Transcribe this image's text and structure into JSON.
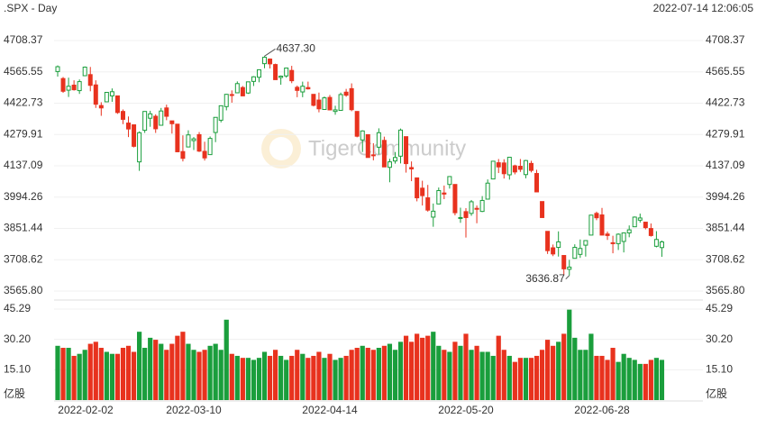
{
  "chart_data": {
    "type": "candlestick",
    "title": ".SPX - Day",
    "timestamp": "2022-07-14 12:06:05",
    "watermark": "TigerCommunity",
    "categories": [
      "2022-02-02",
      null,
      null,
      null,
      null,
      null,
      null,
      null,
      null,
      null,
      null,
      null,
      null,
      null,
      null,
      null,
      null,
      null,
      null,
      null,
      null,
      null,
      null,
      null,
      null,
      "2022-03-10",
      null,
      null,
      null,
      null,
      null,
      null,
      null,
      null,
      null,
      null,
      null,
      null,
      null,
      null,
      null,
      null,
      null,
      null,
      null,
      null,
      null,
      null,
      null,
      null,
      "2022-04-14",
      null,
      null,
      null,
      null,
      null,
      null,
      null,
      null,
      null,
      null,
      null,
      null,
      null,
      null,
      null,
      null,
      null,
      null,
      null,
      null,
      null,
      null,
      null,
      null,
      "2022-05-20",
      null,
      null,
      null,
      null,
      null,
      null,
      null,
      null,
      null,
      null,
      null,
      null,
      null,
      null,
      null,
      null,
      null,
      null,
      null,
      null,
      null,
      null,
      null,
      null,
      "2022-06-28",
      null,
      null,
      null,
      null,
      null,
      null,
      null,
      null,
      null,
      null,
      null
    ],
    "open": [
      4567,
      4535,
      4482,
      4505,
      4480,
      4548,
      4553,
      4506,
      4412,
      4429,
      4456,
      4456,
      4385,
      4332,
      4324,
      4155,
      4299,
      4354,
      4363,
      4322,
      4401,
      4342,
      4327,
      4202,
      4223,
      4252,
      4279,
      4203,
      4188,
      4289,
      4345,
      4407,
      4462,
      4470,
      4494,
      4469,
      4522,
      4541,
      4603,
      4624,
      4599,
      4540,
      4547,
      4572,
      4495,
      4474,
      4494,
      4463,
      4437,
      4394,
      4449,
      4385,
      4390,
      4473,
      4489,
      4385,
      4255,
      4279,
      4187,
      4222,
      4253,
      4130,
      4159,
      4181,
      4270,
      4129,
      4082,
      4035,
      3991,
      3903,
      3963,
      4013,
      4052,
      4052,
      3899,
      3928,
      3920,
      3943,
      3929,
      3985,
      4077,
      4151,
      4150,
      4096,
      4137,
      4135,
      4097,
      4148,
      4102,
      3974,
      3838,
      3763,
      3765,
      3728,
      3665,
      3715,
      3733,
      3775,
      3821,
      3920,
      3913,
      3826,
      3786,
      3782,
      3792,
      3831,
      3859,
      3889,
      3880,
      3851,
      3770,
      3764
    ],
    "high": [
      4595,
      4542,
      4539,
      4527,
      4531,
      4590,
      4588,
      4527,
      4427,
      4473,
      4490,
      4456,
      4394,
      4362,
      4325,
      4294,
      4385,
      4388,
      4372,
      4401,
      4416,
      4342,
      4327,
      4276,
      4299,
      4268,
      4291,
      4247,
      4271,
      4358,
      4412,
      4465,
      4481,
      4522,
      4501,
      4520,
      4546,
      4575,
      4637.3,
      4627,
      4603,
      4549,
      4583,
      4593,
      4503,
      4521,
      4521,
      4464,
      4471,
      4453,
      4460,
      4411,
      4471,
      4488,
      4513,
      4385,
      4299,
      4279,
      4240,
      4308,
      4270,
      4169,
      4200,
      4307,
      4270,
      4157,
      4082,
      4069,
      4050,
      3965,
      4038,
      4047,
      4090,
      4052,
      3946,
      3944,
      3981,
      3956,
      3999,
      4075,
      4158,
      4168,
      4167,
      4177,
      4142,
      4168,
      4164,
      4160,
      4119,
      3974,
      3838,
      3778,
      3838,
      3728,
      3708,
      3779,
      3801,
      3797,
      3913,
      3928,
      3945,
      3837,
      3818,
      3829,
      3832,
      3865,
      3906,
      3919,
      3880,
      3874,
      3839,
      3796
    ],
    "low": [
      4544,
      4470,
      4451,
      4480,
      4465,
      4547,
      4477,
      4401,
      4365,
      4429,
      4429,
      4374,
      4327,
      4268,
      4221,
      4114,
      4287,
      4315,
      4287,
      4322,
      4345,
      4284,
      4199,
      4157,
      4223,
      4209,
      4200,
      4161,
      4187,
      4245,
      4335,
      4390,
      4425,
      4468,
      4455,
      4465,
      4501,
      4518,
      4582,
      4581,
      4530,
      4507,
      4539,
      4514,
      4450,
      4450,
      4485,
      4408,
      4381,
      4392,
      4390,
      4370,
      4390,
      4452,
      4386,
      4267,
      4200,
      4175,
      4162,
      4188,
      4131,
      4062,
      4147,
      4148,
      4106,
      4067,
      3975,
      3956,
      3928,
      3859,
      3963,
      3985,
      4033,
      3911,
      3877,
      3810,
      3909,
      3875,
      3926,
      3984,
      4077,
      4104,
      4079,
      4074,
      4098,
      4109,
      4080,
      4107,
      4017,
      3900,
      3735,
      3725,
      3723,
      3640,
      3636.87,
      3715,
      3717,
      3723,
      3821,
      3889,
      3820,
      3799,
      3738,
      3753,
      3742,
      3811,
      3859,
      3878,
      3847,
      3814,
      3765,
      3722
    ],
    "close": [
      4589,
      4477,
      4500,
      4484,
      4521,
      4587,
      4504,
      4418,
      4401,
      4472,
      4475,
      4380,
      4349,
      4305,
      4226,
      4288,
      4385,
      4374,
      4306,
      4387,
      4363,
      4329,
      4201,
      4171,
      4278,
      4260,
      4204,
      4173,
      4262,
      4358,
      4411,
      4463,
      4461,
      4512,
      4456,
      4520,
      4543,
      4575,
      4632,
      4602,
      4530,
      4546,
      4583,
      4525,
      4481,
      4500,
      4488,
      4413,
      4397,
      4447,
      4392,
      4392,
      4462,
      4459,
      4393,
      4272,
      4296,
      4175,
      4183,
      4288,
      4132,
      4155,
      4175,
      4300,
      4147,
      4123,
      3991,
      4001,
      3935,
      3930,
      4024,
      4008,
      4088,
      3923,
      3901,
      3901,
      3973,
      3941,
      3979,
      4058,
      4158,
      4132,
      4101,
      4176,
      4109,
      4121,
      4161,
      4116,
      4018,
      3901,
      3750,
      3735,
      3790,
      3667,
      3675,
      3765,
      3760,
      3796,
      3912,
      3900,
      3821,
      3819,
      3785,
      3825,
      3831,
      3845,
      3903,
      3899,
      3855,
      3819,
      3801,
      3790
    ],
    "volume": [
      27,
      26,
      26,
      22,
      23,
      25,
      28,
      29,
      26,
      24,
      23,
      23,
      26,
      27,
      24,
      34,
      26,
      31,
      30,
      28,
      25,
      28,
      32,
      34,
      28,
      25,
      24,
      25,
      27,
      28,
      25,
      40,
      23,
      22,
      21,
      21,
      20,
      21,
      24,
      22,
      25,
      22,
      20,
      22,
      25,
      23,
      21,
      22,
      24,
      21,
      23,
      20,
      21,
      22,
      25,
      26,
      27,
      26,
      25,
      26,
      27,
      28,
      25,
      29,
      32,
      29,
      33,
      31,
      32,
      34,
      27,
      25,
      24,
      29,
      27,
      33,
      25,
      27,
      24,
      24,
      22,
      32,
      25,
      22,
      19,
      21,
      21,
      21,
      22,
      25,
      30,
      27,
      29,
      33,
      45,
      31,
      25,
      25,
      33,
      22,
      22,
      20,
      26,
      19,
      23,
      21,
      20,
      18,
      18,
      20,
      21,
      20
    ],
    "up_color": "#1a9e3c",
    "down_color": "#e8321e",
    "ylim": [
      3565.8,
      4708.37
    ],
    "yticks": [
      {
        "value": 3565.8,
        "label": "3565.80"
      },
      3708.62,
      3851.44,
      3994.26,
      4137.09,
      4279.91,
      4422.73,
      4565.55,
      4708.37
    ],
    "y2lim": [
      0,
      45.29
    ],
    "y2ticks": [
      {
        "value": 15.1,
        "label": "15.10"
      },
      {
        "value": 30.2,
        "label": "30.20"
      },
      45.29
    ],
    "y2_unit": "亿股",
    "annotations": [
      {
        "label": "4637.30",
        "value": 4637.3
      },
      {
        "label": "3636.87",
        "value": 3636.87
      }
    ],
    "grid": true
  }
}
